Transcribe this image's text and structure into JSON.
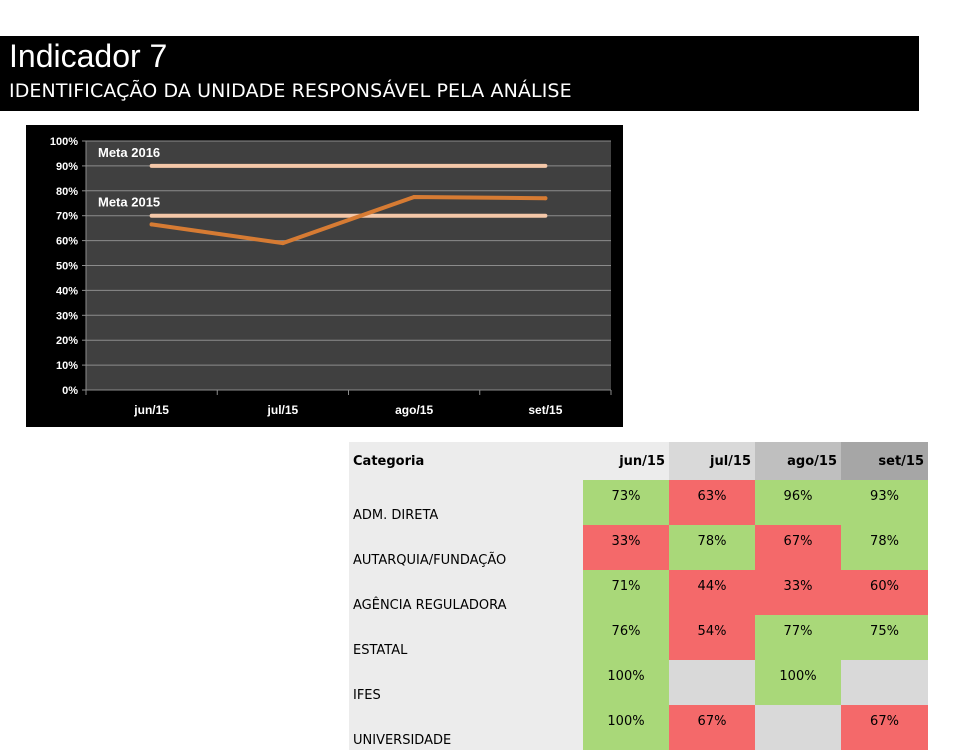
{
  "header": {
    "title": "Indicador 7",
    "subtitle": "IDENTIFICAÇÃO DA UNIDADE RESPONSÁVEL PELA ANÁLISE"
  },
  "colors": {
    "chart_background": "#000000",
    "plot_background": "#404040",
    "series_line": "#d67b33",
    "goal_line": "#f4c7a8",
    "good_cell": "#a9d879",
    "bad_cell": "#f4696a",
    "empty_cell": "#d9d9d9"
  },
  "chart_data": {
    "type": "line",
    "categories": [
      "jun/15",
      "jul/15",
      "ago/15",
      "set/15"
    ],
    "series": [
      {
        "name": "",
        "values": [
          66.5,
          59,
          77.5,
          77
        ]
      }
    ],
    "reference_lines": [
      {
        "label": "Meta 2016",
        "value": 90
      },
      {
        "label": "Meta 2015",
        "value": 70
      }
    ],
    "title": "",
    "xlabel": "",
    "ylabel": "",
    "ylim": [
      0,
      100
    ],
    "yticks": [
      "0%",
      "10%",
      "20%",
      "30%",
      "40%",
      "50%",
      "60%",
      "70%",
      "80%",
      "90%",
      "100%"
    ],
    "grid": true,
    "legend": "none"
  },
  "table": {
    "headers": [
      "Categoria",
      "jun/15",
      "jul/15",
      "ago/15",
      "set/15"
    ],
    "rows": [
      {
        "label": "ADM. DIRETA",
        "cells": [
          {
            "v": "73%",
            "s": "good"
          },
          {
            "v": "63%",
            "s": "bad"
          },
          {
            "v": "96%",
            "s": "good"
          },
          {
            "v": "93%",
            "s": "good"
          }
        ]
      },
      {
        "label": "AUTARQUIA/FUNDAÇÃO",
        "cells": [
          {
            "v": "33%",
            "s": "bad"
          },
          {
            "v": "78%",
            "s": "good"
          },
          {
            "v": "67%",
            "s": "bad"
          },
          {
            "v": "78%",
            "s": "good"
          }
        ]
      },
      {
        "label": "AGÊNCIA REGULADORA",
        "cells": [
          {
            "v": "71%",
            "s": "good"
          },
          {
            "v": "44%",
            "s": "bad"
          },
          {
            "v": "33%",
            "s": "bad"
          },
          {
            "v": "60%",
            "s": "bad"
          }
        ]
      },
      {
        "label": "ESTATAL",
        "cells": [
          {
            "v": "76%",
            "s": "good"
          },
          {
            "v": "54%",
            "s": "bad"
          },
          {
            "v": "77%",
            "s": "good"
          },
          {
            "v": "75%",
            "s": "good"
          }
        ]
      },
      {
        "label": "IFES",
        "cells": [
          {
            "v": "100%",
            "s": "good"
          },
          {
            "v": "",
            "s": "empty"
          },
          {
            "v": "100%",
            "s": "good"
          },
          {
            "v": "",
            "s": "empty"
          }
        ]
      },
      {
        "label": "UNIVERSIDADE",
        "cells": [
          {
            "v": "100%",
            "s": "good"
          },
          {
            "v": "67%",
            "s": "bad"
          },
          {
            "v": "",
            "s": "empty"
          },
          {
            "v": "67%",
            "s": "bad"
          }
        ]
      }
    ]
  }
}
